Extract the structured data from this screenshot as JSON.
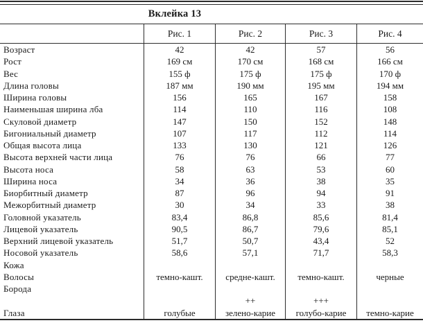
{
  "title": "Вклейка 13",
  "columns": [
    "Рис. 1",
    "Рис. 2",
    "Рис. 3",
    "Рис. 4"
  ],
  "rows": [
    {
      "label": "Возраст",
      "values": [
        "42",
        "42",
        "57",
        "56"
      ]
    },
    {
      "label": "Рост",
      "values": [
        "169 см",
        "170 см",
        "168 см",
        "166 см"
      ]
    },
    {
      "label": "Вес",
      "values": [
        "155 ф",
        "175 ф",
        "175 ф",
        "170 ф"
      ]
    },
    {
      "label": "Длина головы",
      "values": [
        "187 мм",
        "190 мм",
        "195 мм",
        "194 мм"
      ]
    },
    {
      "label": "Ширина головы",
      "values": [
        "156",
        "165",
        "167",
        "158"
      ]
    },
    {
      "label": "Наименьшая ширина лба",
      "values": [
        "114",
        "110",
        "116",
        "108"
      ]
    },
    {
      "label": "Скуловой диаметр",
      "values": [
        "147",
        "150",
        "152",
        "148"
      ]
    },
    {
      "label": "Бигониальный диаметр",
      "values": [
        "107",
        "117",
        "112",
        "114"
      ]
    },
    {
      "label": "Общая высота лица",
      "values": [
        "133",
        "130",
        "121",
        "126"
      ]
    },
    {
      "label": "Высота верхней части лица",
      "values": [
        "76",
        "76",
        "66",
        "77"
      ]
    },
    {
      "label": "Высота носа",
      "values": [
        "58",
        "63",
        "53",
        "60"
      ]
    },
    {
      "label": "Ширина носа",
      "values": [
        "34",
        "36",
        "38",
        "35"
      ]
    },
    {
      "label": "Биорбитный диаметр",
      "values": [
        "87",
        "96",
        "94",
        "91"
      ]
    },
    {
      "label": "Межорбитный диаметр",
      "values": [
        "30",
        "34",
        "33",
        "38"
      ]
    },
    {
      "label": "Головной указатель",
      "values": [
        "83,4",
        "86,8",
        "85,6",
        "81,4"
      ]
    },
    {
      "label": "Лицевой указатель",
      "values": [
        "90,5",
        "86,7",
        "79,6",
        "85,1"
      ]
    },
    {
      "label": "Верхний лицевой указатель",
      "values": [
        "51,7",
        "50,7",
        "43,4",
        "52"
      ]
    },
    {
      "label": "Носовой указатель",
      "values": [
        "58,6",
        "57,1",
        "71,7",
        "58,3"
      ]
    },
    {
      "label": "Кожа",
      "values": [
        "",
        "",
        "",
        ""
      ]
    },
    {
      "label": "Волосы",
      "values": [
        "темно-кашт.",
        "средне-кашт.",
        "темно-кашт.",
        "черные"
      ]
    },
    {
      "label": "Борода",
      "values": [
        "",
        "",
        "",
        ""
      ]
    },
    {
      "label": "",
      "values": [
        "",
        "++",
        "+++",
        ""
      ]
    },
    {
      "label": "Глаза",
      "values": [
        "голубые",
        "зелено-карие",
        "голубо-карие",
        "темно-карие"
      ]
    }
  ],
  "colors": {
    "background": "#ffffff",
    "text": "#1a1a1a",
    "rule": "#2b2b2b"
  }
}
